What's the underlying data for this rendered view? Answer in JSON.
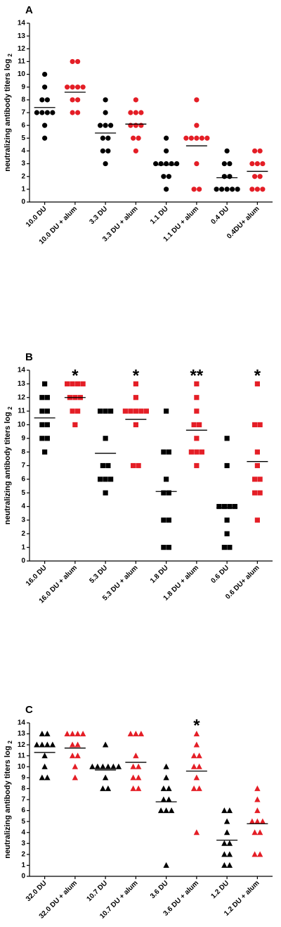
{
  "chart_data": [
    {
      "type": "dot",
      "panel_label": "A",
      "ylabel": "neutralizing antibody titers log",
      "ylabel_subscript": "2",
      "marker": "circle",
      "categories": [
        "10.0 DU",
        "10.0 DU + alum",
        "3.3 DU",
        "3.3 DU + alum",
        "1.1 DU",
        "1.1 DU + alum",
        "0.4 DU",
        "0.4DU+ alum"
      ],
      "colors": [
        "#000000",
        "#e41e26",
        "#000000",
        "#e41e26",
        "#000000",
        "#e41e26",
        "#000000",
        "#e41e26"
      ],
      "points": [
        [
          10,
          9,
          8,
          8,
          7,
          7,
          7,
          7,
          6,
          5
        ],
        [
          11,
          11,
          9,
          9,
          9,
          9,
          8,
          8,
          7,
          7
        ],
        [
          8,
          7,
          6,
          6,
          6,
          5,
          5,
          4,
          4,
          3
        ],
        [
          8,
          7,
          7,
          7,
          6,
          6,
          6,
          5,
          5,
          4
        ],
        [
          5,
          4,
          3,
          3,
          3,
          3,
          3,
          2,
          2,
          1
        ],
        [
          8,
          6,
          5,
          5,
          5,
          5,
          5,
          3,
          1,
          1
        ],
        [
          4,
          3,
          3,
          2,
          2,
          1,
          1,
          1,
          1,
          1
        ],
        [
          4,
          4,
          3,
          3,
          3,
          2,
          2,
          1,
          1,
          1
        ]
      ],
      "means": [
        7.4,
        8.6,
        5.4,
        6.1,
        2.9,
        4.4,
        1.9,
        2.4
      ],
      "ylim": [
        0,
        14
      ],
      "yticks": [
        0,
        1,
        2,
        3,
        4,
        5,
        6,
        7,
        8,
        9,
        10,
        11,
        12,
        13,
        14
      ]
    },
    {
      "type": "dot",
      "panel_label": "B",
      "ylabel": "neutralizing antibody titers log",
      "ylabel_subscript": "2",
      "marker": "square",
      "categories": [
        "16.0 DU",
        "16.0 DU + alum",
        "5.3 DU",
        "5.3 DU + alum",
        "1.8 DU",
        "1.8 DU + alum",
        "0.6 DU",
        "0.6 DU+ alum"
      ],
      "colors": [
        "#000000",
        "#e41e26",
        "#000000",
        "#e41e26",
        "#000000",
        "#e41e26",
        "#000000",
        "#e41e26"
      ],
      "points": [
        [
          13,
          12,
          12,
          11,
          11,
          10,
          10,
          9,
          9,
          8
        ],
        [
          13,
          13,
          13,
          13,
          12,
          12,
          12,
          11,
          11,
          10
        ],
        [
          11,
          11,
          11,
          9,
          7,
          7,
          6,
          6,
          6,
          5
        ],
        [
          13,
          12,
          11,
          11,
          11,
          11,
          11,
          10,
          7,
          7
        ],
        [
          11,
          8,
          8,
          6,
          5,
          5,
          3,
          3,
          1,
          1
        ],
        [
          13,
          12,
          11,
          10,
          10,
          9,
          8,
          8,
          8,
          7
        ],
        [
          9,
          7,
          4,
          4,
          4,
          4,
          3,
          2,
          1,
          1
        ],
        [
          13,
          10,
          10,
          8,
          7,
          6,
          6,
          5,
          5,
          3
        ]
      ],
      "means": [
        10.5,
        12,
        7.9,
        10.4,
        5.1,
        9.6,
        3.9,
        7.3
      ],
      "significance": [
        null,
        "*",
        null,
        "*",
        null,
        "**",
        null,
        "*"
      ],
      "ylim": [
        0,
        14
      ],
      "yticks": [
        0,
        1,
        2,
        3,
        4,
        5,
        6,
        7,
        8,
        9,
        10,
        11,
        12,
        13,
        14
      ]
    },
    {
      "type": "dot",
      "panel_label": "C",
      "ylabel": "neutralizing antibody titers log",
      "ylabel_subscript": "2",
      "marker": "triangle",
      "categories": [
        "32.0 DU",
        "32.0 DU + alum",
        "10.7 DU",
        "10.7 DU + alum",
        "3.6 DU",
        "3.6 DU + alum",
        "1.2 DU",
        "1.2 DU + alum"
      ],
      "colors": [
        "#000000",
        "#e41e26",
        "#000000",
        "#e41e26",
        "#000000",
        "#e41e26",
        "#000000",
        "#e41e26"
      ],
      "points": [
        [
          13,
          13,
          12,
          12,
          12,
          12,
          11,
          10,
          9,
          9
        ],
        [
          13,
          13,
          13,
          13,
          12,
          12,
          11,
          11,
          10,
          9
        ],
        [
          12,
          10,
          10,
          10,
          10,
          10,
          10,
          9,
          8,
          8
        ],
        [
          13,
          13,
          13,
          11,
          10,
          10,
          9,
          9,
          8,
          8
        ],
        [
          10,
          9,
          8,
          8,
          7,
          7,
          6,
          6,
          6,
          1
        ],
        [
          13,
          12,
          11,
          11,
          10,
          10,
          9,
          8,
          8,
          4
        ],
        [
          6,
          6,
          5,
          4,
          3,
          3,
          2,
          2,
          1,
          1
        ],
        [
          8,
          7,
          6,
          5,
          5,
          5,
          4,
          4,
          2,
          2
        ]
      ],
      "means": [
        11.3,
        11.7,
        9.7,
        10.4,
        6.8,
        9.6,
        3.3,
        4.8
      ],
      "significance": [
        null,
        null,
        null,
        null,
        null,
        "*",
        null,
        null
      ],
      "ylim": [
        0,
        14
      ],
      "yticks": [
        0,
        1,
        2,
        3,
        4,
        5,
        6,
        7,
        8,
        9,
        10,
        11,
        12,
        13,
        14
      ]
    }
  ]
}
